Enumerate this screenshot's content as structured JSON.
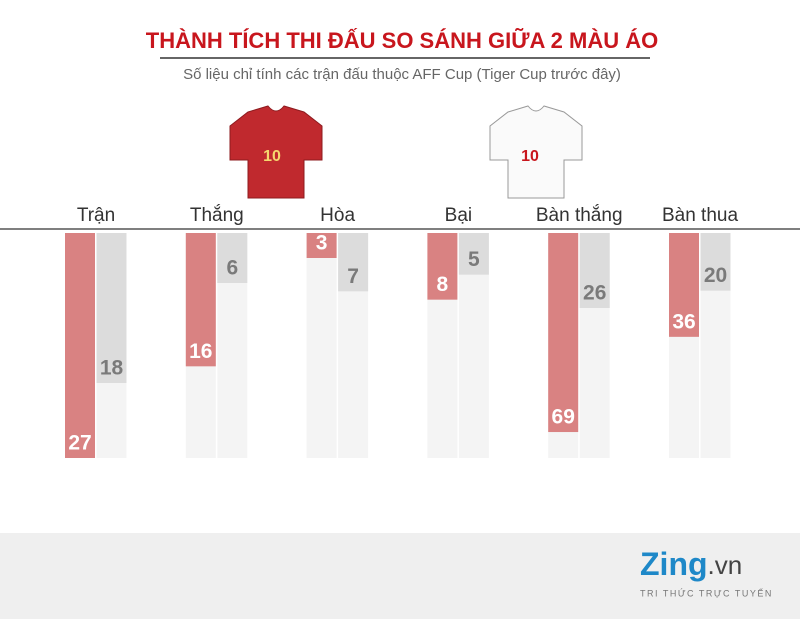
{
  "header": {
    "title": "THÀNH TÍCH THI ĐẤU SO SÁNH GIỮA 2 MÀU ÁO",
    "subtitle": "Số liệu chỉ tính các trận đấu thuộc AFF Cup (Tiger Cup trước đây)",
    "shirt_numbers": [
      "10",
      "10"
    ]
  },
  "chart_data": [
    {
      "type": "bar",
      "categories": [
        "Trận",
        "Thắng",
        "Hòa",
        "Bại"
      ],
      "ylim": [
        0,
        27
      ],
      "y_inverted": true,
      "track_color": "#f4f4f4",
      "series": [
        {
          "color": "#d98282",
          "values": [
            27,
            16,
            3,
            8
          ]
        },
        {
          "color": "#dcdcdc",
          "values": [
            18,
            6,
            7,
            5
          ]
        }
      ]
    },
    {
      "type": "bar",
      "categories": [
        "Bàn thắng",
        "Bàn thua"
      ],
      "ylim": [
        0,
        78
      ],
      "y_inverted": true,
      "track_color": "#f4f4f4",
      "series": [
        {
          "color": "#d98282",
          "values": [
            69,
            36
          ]
        },
        {
          "color": "#dcdcdc",
          "values": [
            26,
            20
          ]
        }
      ]
    }
  ],
  "footer": {
    "logo": "Zing",
    "logo_suffix": ".vn",
    "tagline": "TRI THỨC TRỰC TUYẾN"
  }
}
